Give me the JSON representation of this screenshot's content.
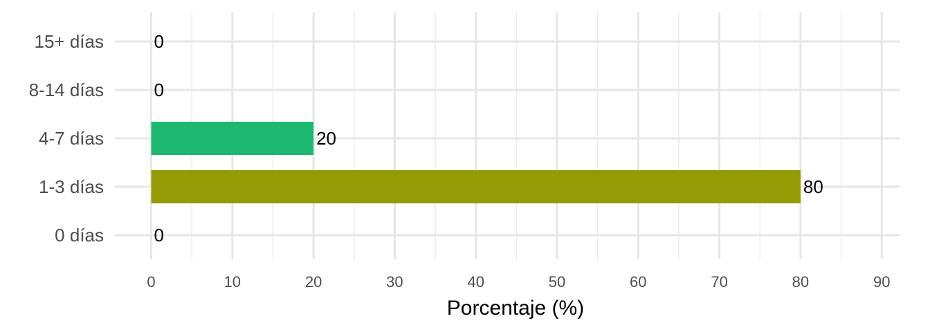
{
  "chart_data": {
    "type": "bar",
    "orientation": "horizontal",
    "categories": [
      "0 días",
      "1-3 días",
      "4-7 días",
      "8-14 días",
      "15+ días"
    ],
    "values": [
      0,
      80,
      20,
      0,
      0
    ],
    "data_labels": [
      "0",
      "80",
      "20",
      "0",
      "0"
    ],
    "bar_colors": [
      "#C49A00",
      "#949A04",
      "#1CB86F",
      "#00A9C8",
      "#BB7CFF"
    ],
    "xlabel": "Porcentaje (%)",
    "ylabel": "",
    "title": "",
    "xlim": [
      0,
      93
    ],
    "x_ticks": [
      0,
      10,
      20,
      30,
      40,
      50,
      60,
      70,
      80,
      90
    ],
    "x_tick_labels": [
      "0",
      "10",
      "20",
      "30",
      "40",
      "50",
      "60",
      "70",
      "80",
      "90"
    ],
    "grid": true,
    "legend": "none"
  }
}
